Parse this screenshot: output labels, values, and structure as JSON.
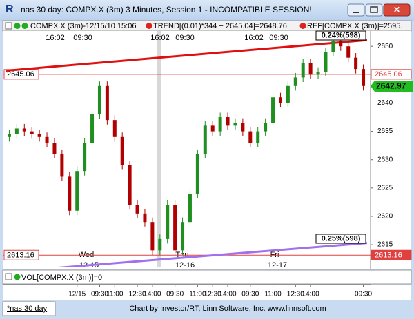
{
  "window": {
    "title": "nas 30 day: COMPX.X (3m) 3 Minutes, Session 1 - INCOMPATIBLE SESSION!",
    "tab": "*nas 30 day",
    "credit": "Chart by Investor/RT, Linn Software, Inc. www.linnsoft.com"
  },
  "chart_data": {
    "type": "candlestick",
    "header": [
      "COMPX.X (3m)-12/15/10 15:06",
      "TREND[(0.01)*344 + 2645.04]=2648.76",
      "REF[COMPX.X (3m)]=2595."
    ],
    "session_labels": [
      "16:02",
      "09:30",
      "16:02",
      "09:30",
      "16:02",
      "09:30"
    ],
    "day_labels": [
      {
        "day": "Wed",
        "date": "12-15"
      },
      {
        "day": "Thu",
        "date": "12-16"
      },
      {
        "day": "Fri",
        "date": "12-17"
      }
    ],
    "categories": [
      null,
      null,
      null,
      null,
      null,
      null,
      null,
      null,
      null,
      "12/15",
      null,
      null,
      "09:30",
      null,
      "11:00",
      null,
      null,
      "12:30",
      null,
      "14:00",
      null,
      null,
      "09:30",
      null,
      null,
      "11:00",
      null,
      "12:30",
      null,
      "14:00",
      null,
      null,
      "09:30",
      null,
      null,
      "11:00",
      null,
      null,
      "12:30",
      null,
      "14:00",
      null,
      null,
      null,
      null,
      null,
      null,
      "09:30"
    ],
    "open": [
      2634,
      2634.5,
      2635.5,
      2635,
      2634.5,
      2634,
      2633,
      2631,
      2627,
      2621,
      2628,
      2633,
      2638,
      2643,
      2637,
      2634,
      2629,
      2622,
      2620.5,
      2619,
      2614,
      2616,
      2622,
      2614,
      2619,
      2624,
      2631,
      2636,
      2635,
      2637.5,
      2636,
      2636.5,
      2635,
      2633,
      2635,
      2636.5,
      2641,
      2640,
      2643,
      2644.5,
      2647,
      2645,
      2645.5,
      2649,
      2651,
      2650,
      2648,
      2646
    ],
    "high": [
      2635.3,
      2636.3,
      2636.3,
      2635.8,
      2635.3,
      2634.8,
      2633.8,
      2631.8,
      2627.8,
      2628.8,
      2633.8,
      2638.8,
      2643.8,
      2643.8,
      2637.8,
      2634.8,
      2629.8,
      2622.8,
      2621.3,
      2619.8,
      2616.8,
      2622.8,
      2622.8,
      2619.8,
      2624.8,
      2631.8,
      2636.8,
      2636.8,
      2638.3,
      2638.3,
      2637.3,
      2637.3,
      2635.8,
      2635.8,
      2637.3,
      2641.8,
      2641.8,
      2643.8,
      2645.3,
      2647.8,
      2647.8,
      2646.3,
      2649.8,
      2651.8,
      2651.8,
      2650.8,
      2648.8,
      2646.8
    ],
    "low": [
      2633.2,
      2633.7,
      2634.2,
      2633.7,
      2633.2,
      2632.2,
      2630.2,
      2626.2,
      2620.2,
      2620.2,
      2627.2,
      2632.2,
      2637.2,
      2636.2,
      2633.2,
      2628.2,
      2621.2,
      2619.7,
      2618.2,
      2613.2,
      2613.2,
      2615.2,
      2613.2,
      2613.2,
      2618.2,
      2623.2,
      2630.2,
      2634.2,
      2634.2,
      2635.2,
      2635.2,
      2634.2,
      2632.2,
      2632.2,
      2634.2,
      2635.7,
      2639.2,
      2639.2,
      2642.2,
      2643.7,
      2644.2,
      2644.2,
      2644.7,
      2648.2,
      2649.2,
      2647.2,
      2645.2,
      2642.2
    ],
    "close": [
      2634.5,
      2635.5,
      2635,
      2634.5,
      2634,
      2633,
      2631,
      2627,
      2621,
      2628,
      2633,
      2638,
      2643,
      2637,
      2634,
      2629,
      2622,
      2620.5,
      2619,
      2614,
      2616,
      2622,
      2614,
      2619,
      2624,
      2631,
      2636,
      2635,
      2637.5,
      2636,
      2636.5,
      2635,
      2633,
      2635,
      2636.5,
      2641,
      2640,
      2643,
      2644.5,
      2647,
      2645,
      2645.5,
      2649,
      2651,
      2650,
      2648,
      2646,
      2643
    ],
    "up_color": "#1f8f1f",
    "down_color": "#b00000",
    "ylim": [
      2611,
      2652.7
    ],
    "yticks": [
      2615,
      2620,
      2625,
      2630,
      2635,
      2640,
      2645,
      2650
    ],
    "trend_lines": [
      {
        "color": "#e01010",
        "values": [
          2645.7,
          2651.1
        ],
        "label": "0.24%(598)"
      },
      {
        "color": "#a070f0",
        "values": [
          2610.2,
          2615.3
        ],
        "label": "0.25%(598)"
      }
    ],
    "ref_lines": [
      {
        "value": 2645.06,
        "color": "#e04040"
      },
      {
        "value": 2613.16,
        "color": "#e04040"
      }
    ],
    "last": 2642.97,
    "last_color": "#22bb22",
    "volume_label": "VOL[COMPX.X (3m)]=0"
  }
}
